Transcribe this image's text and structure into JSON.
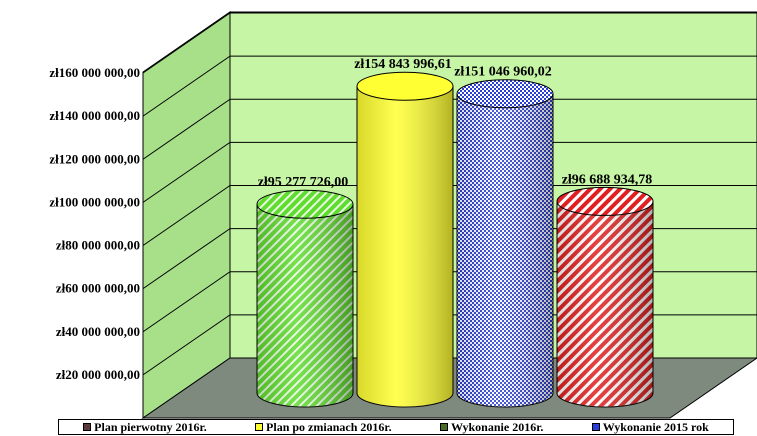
{
  "chart_data": {
    "type": "bar",
    "style": "3d-cylinder",
    "ylim": [
      0,
      160000000
    ],
    "y_ticks": [
      20000000,
      40000000,
      60000000,
      80000000,
      100000000,
      120000000,
      140000000,
      160000000
    ],
    "y_tick_labels": [
      "zł20 000 000,00",
      "zł40 000 000,00",
      "zł60 000 000,00",
      "zł80 000 000,00",
      "zł100 000 000,00",
      "zł120 000 000,00",
      "zł140 000 000,00",
      "zł160 000 000,00"
    ],
    "grid": true,
    "legend_position": "bottom",
    "series": [
      {
        "name": "Plan pierwotny 2016r.",
        "value": 95277726.0,
        "label": "zł95 277 726,00",
        "color": "#5fdc2e",
        "pattern": "diagonal-stripes"
      },
      {
        "name": "Plan po zmianach 2016r.",
        "value": 154843996.61,
        "label": "zł154 843 996,61",
        "color": "#ffff33",
        "pattern": "solid"
      },
      {
        "name": "Wykonanie 2016r.",
        "value": 151046960.02,
        "label": "zł151 046 960,02",
        "color": "#2a3fd6",
        "pattern": "checker"
      },
      {
        "name": "Wykonanie 2015 rok",
        "value": 96688934.78,
        "label": "zł96 688 934,78",
        "color": "#e02020",
        "pattern": "diagonal-stripes"
      }
    ],
    "legend": [
      {
        "label": "Plan pierwotny 2016r.",
        "color": "#5a3a3a"
      },
      {
        "label": "Plan po zmianach 2016r.",
        "color": "#ffff33"
      },
      {
        "label": "Wykonanie 2016r.",
        "color": "#4a6a2a"
      },
      {
        "label": "Wykonanie 2015 rok",
        "color": "#2a3fd6"
      }
    ],
    "colors": {
      "wall": "#c6f5a6",
      "side_wall": "#a8e08a",
      "floor": "#7f8a7f",
      "grid": "#000000"
    }
  }
}
